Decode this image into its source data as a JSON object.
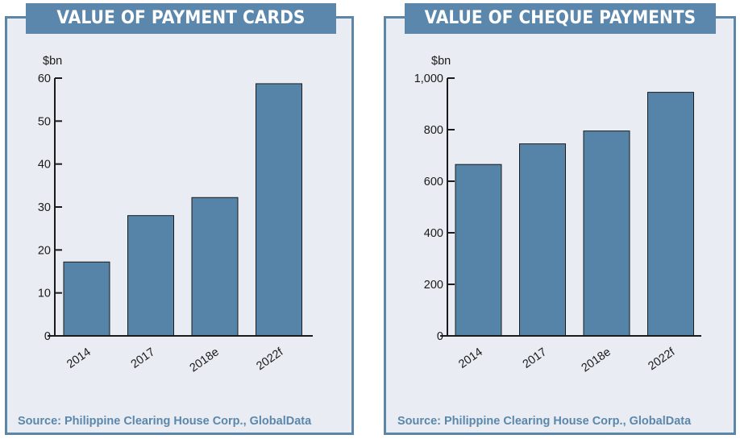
{
  "chart_data": [
    {
      "type": "bar",
      "title": "VALUE OF PAYMENT CARDS",
      "ylabel": "$bn",
      "categories": [
        "2014",
        "2017",
        "2018e",
        "2022f"
      ],
      "values": [
        17.2,
        28,
        32.2,
        58.7
      ],
      "ylim": [
        0,
        60
      ],
      "yticks": [
        "0",
        "10",
        "20",
        "30",
        "40",
        "50",
        "60"
      ],
      "ytick_values": [
        0,
        10,
        20,
        30,
        40,
        50,
        60
      ],
      "bar_color": "#5683a8",
      "source": "Source: Philippine Clearing House Corp., GlobalData"
    },
    {
      "type": "bar",
      "title": "VALUE OF CHEQUE PAYMENTS",
      "ylabel": "$bn",
      "categories": [
        "2014",
        "2017",
        "2018e",
        "2022f"
      ],
      "values": [
        665,
        745,
        795,
        945
      ],
      "ylim": [
        0,
        1000
      ],
      "yticks": [
        "0",
        "200",
        "400",
        "600",
        "800",
        "1,000"
      ],
      "ytick_values": [
        0,
        200,
        400,
        600,
        800,
        1000
      ],
      "bar_color": "#5683a8",
      "source": "Source: Philippine Clearing House Corp., GlobalData"
    }
  ],
  "colors": {
    "frame": "#5b86a8",
    "panel_bg": "#e9ecf2",
    "title_bg": "#5a87ab",
    "source_text": "#5a87ab"
  }
}
